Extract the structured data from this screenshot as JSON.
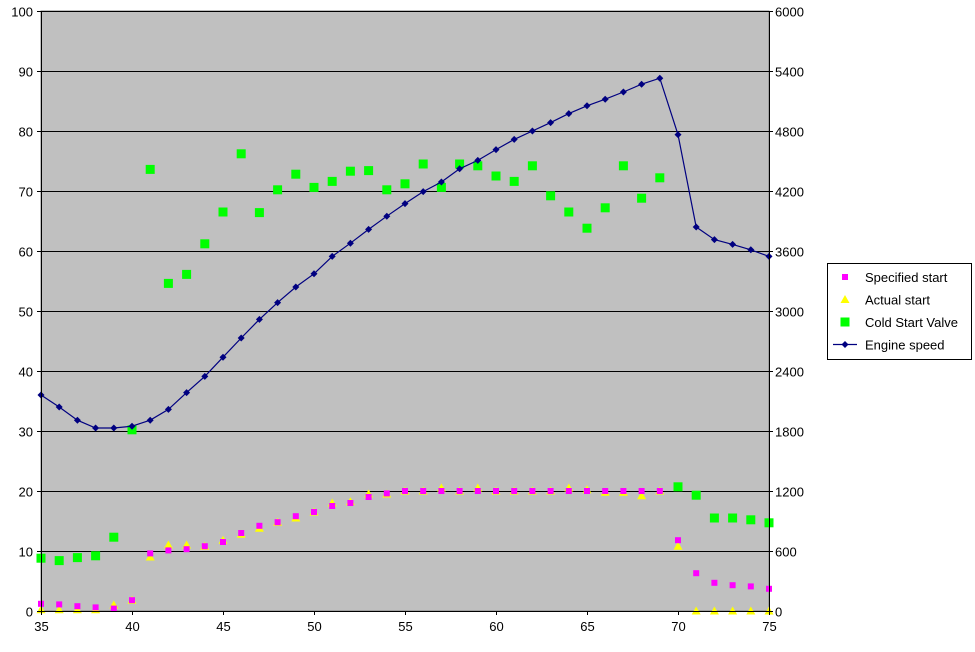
{
  "chart_data": {
    "type": "scatter",
    "title": "",
    "xlabel": "",
    "ylabel": "",
    "y2label": "",
    "xlim": [
      35,
      75
    ],
    "ylim": [
      0,
      100
    ],
    "y2lim": [
      0,
      6000
    ],
    "x_ticks": [
      35,
      40,
      45,
      50,
      55,
      60,
      65,
      70,
      75
    ],
    "y_ticks": [
      0,
      10,
      20,
      30,
      40,
      50,
      60,
      70,
      80,
      90,
      100
    ],
    "y2_ticks": [
      0,
      600,
      1200,
      1800,
      2400,
      3000,
      3600,
      4200,
      4800,
      5400,
      6000
    ],
    "grid": "horizontal major gridlines",
    "plot_background": "#c0c0c0",
    "legend_position": "right",
    "series": [
      {
        "name": "Specified start",
        "marker": "square",
        "axis": "left",
        "color": "#ff00ff",
        "x": [
          35,
          36,
          37,
          38,
          39,
          40,
          41,
          42,
          43,
          44,
          45,
          46,
          47,
          48,
          49,
          50,
          51,
          52,
          53,
          54,
          55,
          56,
          57,
          58,
          59,
          60,
          61,
          62,
          63,
          64,
          65,
          66,
          67,
          68,
          69,
          70,
          71,
          72,
          73,
          74,
          75
        ],
        "y": [
          1.2,
          1.1,
          0.8,
          0.6,
          0.4,
          1.8,
          9.6,
          10.1,
          10.3,
          10.8,
          11.5,
          13.0,
          14.2,
          14.8,
          15.8,
          16.5,
          17.5,
          18.0,
          19.0,
          19.6,
          20,
          20,
          20,
          20,
          20,
          20,
          20,
          20,
          20,
          20,
          20,
          20,
          20,
          20,
          20,
          11.8,
          6.3,
          4.7,
          4.3,
          4.1,
          3.7
        ]
      },
      {
        "name": "Actual start",
        "marker": "triangle",
        "axis": "left",
        "color": "#ffff00",
        "x": [
          35,
          36,
          37,
          38,
          39,
          40,
          41,
          42,
          43,
          44,
          45,
          46,
          47,
          48,
          49,
          50,
          51,
          52,
          53,
          54,
          55,
          56,
          57,
          58,
          59,
          60,
          61,
          62,
          63,
          64,
          65,
          66,
          67,
          68,
          69,
          70,
          71,
          72,
          73,
          74,
          75
        ],
        "y": [
          0.2,
          0.2,
          0.2,
          0.2,
          1.0,
          1.8,
          9.0,
          11.0,
          11.0,
          10.8,
          11.8,
          12.8,
          13.8,
          14.8,
          15.5,
          16.5,
          18.0,
          18.2,
          19.5,
          19.5,
          20,
          20,
          20.5,
          20,
          20.5,
          20,
          20,
          20,
          20,
          20.5,
          20.2,
          19.8,
          19.8,
          19.2,
          20,
          10.8,
          0,
          0,
          0,
          0,
          0
        ]
      },
      {
        "name": "Cold Start Valve",
        "marker": "square",
        "axis": "left",
        "color": "#00ff00",
        "x": [
          35,
          36,
          37,
          38,
          39,
          40,
          41,
          42,
          43,
          44,
          45,
          46,
          47,
          48,
          49,
          50,
          51,
          52,
          53,
          54,
          55,
          56,
          57,
          58,
          59,
          60,
          61,
          62,
          63,
          64,
          65,
          66,
          67,
          68,
          69,
          70,
          71,
          72,
          73,
          74,
          75
        ],
        "y": [
          8.8,
          8.4,
          8.9,
          9.2,
          12.3,
          30.2,
          73.6,
          54.6,
          56.1,
          61.2,
          66.5,
          76.2,
          66.4,
          70.2,
          72.8,
          70.6,
          71.6,
          73.3,
          73.4,
          70.2,
          71.2,
          74.5,
          70.6,
          74.5,
          74.2,
          72.5,
          71.6,
          74.2,
          69.2,
          66.5,
          63.8,
          67.2,
          74.2,
          68.8,
          72.2,
          20.7,
          19.3,
          15.5,
          15.5,
          15.2,
          14.7
        ]
      },
      {
        "name": "Engine speed",
        "marker": "diamond-line",
        "axis": "right",
        "color": "#000080",
        "x": [
          35,
          36,
          37,
          38,
          39,
          40,
          41,
          42,
          43,
          44,
          45,
          46,
          47,
          48,
          49,
          50,
          51,
          52,
          53,
          54,
          55,
          56,
          57,
          58,
          59,
          60,
          61,
          62,
          63,
          64,
          65,
          66,
          67,
          68,
          69,
          70,
          71,
          72,
          73,
          74,
          75
        ],
        "y": [
          2160,
          2040,
          1908,
          1830,
          1830,
          1848,
          1908,
          2016,
          2184,
          2346,
          2538,
          2730,
          2916,
          3084,
          3240,
          3372,
          3546,
          3678,
          3816,
          3948,
          4074,
          4194,
          4290,
          4422,
          4506,
          4614,
          4716,
          4800,
          4884,
          4974,
          5052,
          5118,
          5190,
          5268,
          5328,
          4764,
          3840,
          3714,
          3666,
          3612,
          3546
        ]
      }
    ]
  }
}
